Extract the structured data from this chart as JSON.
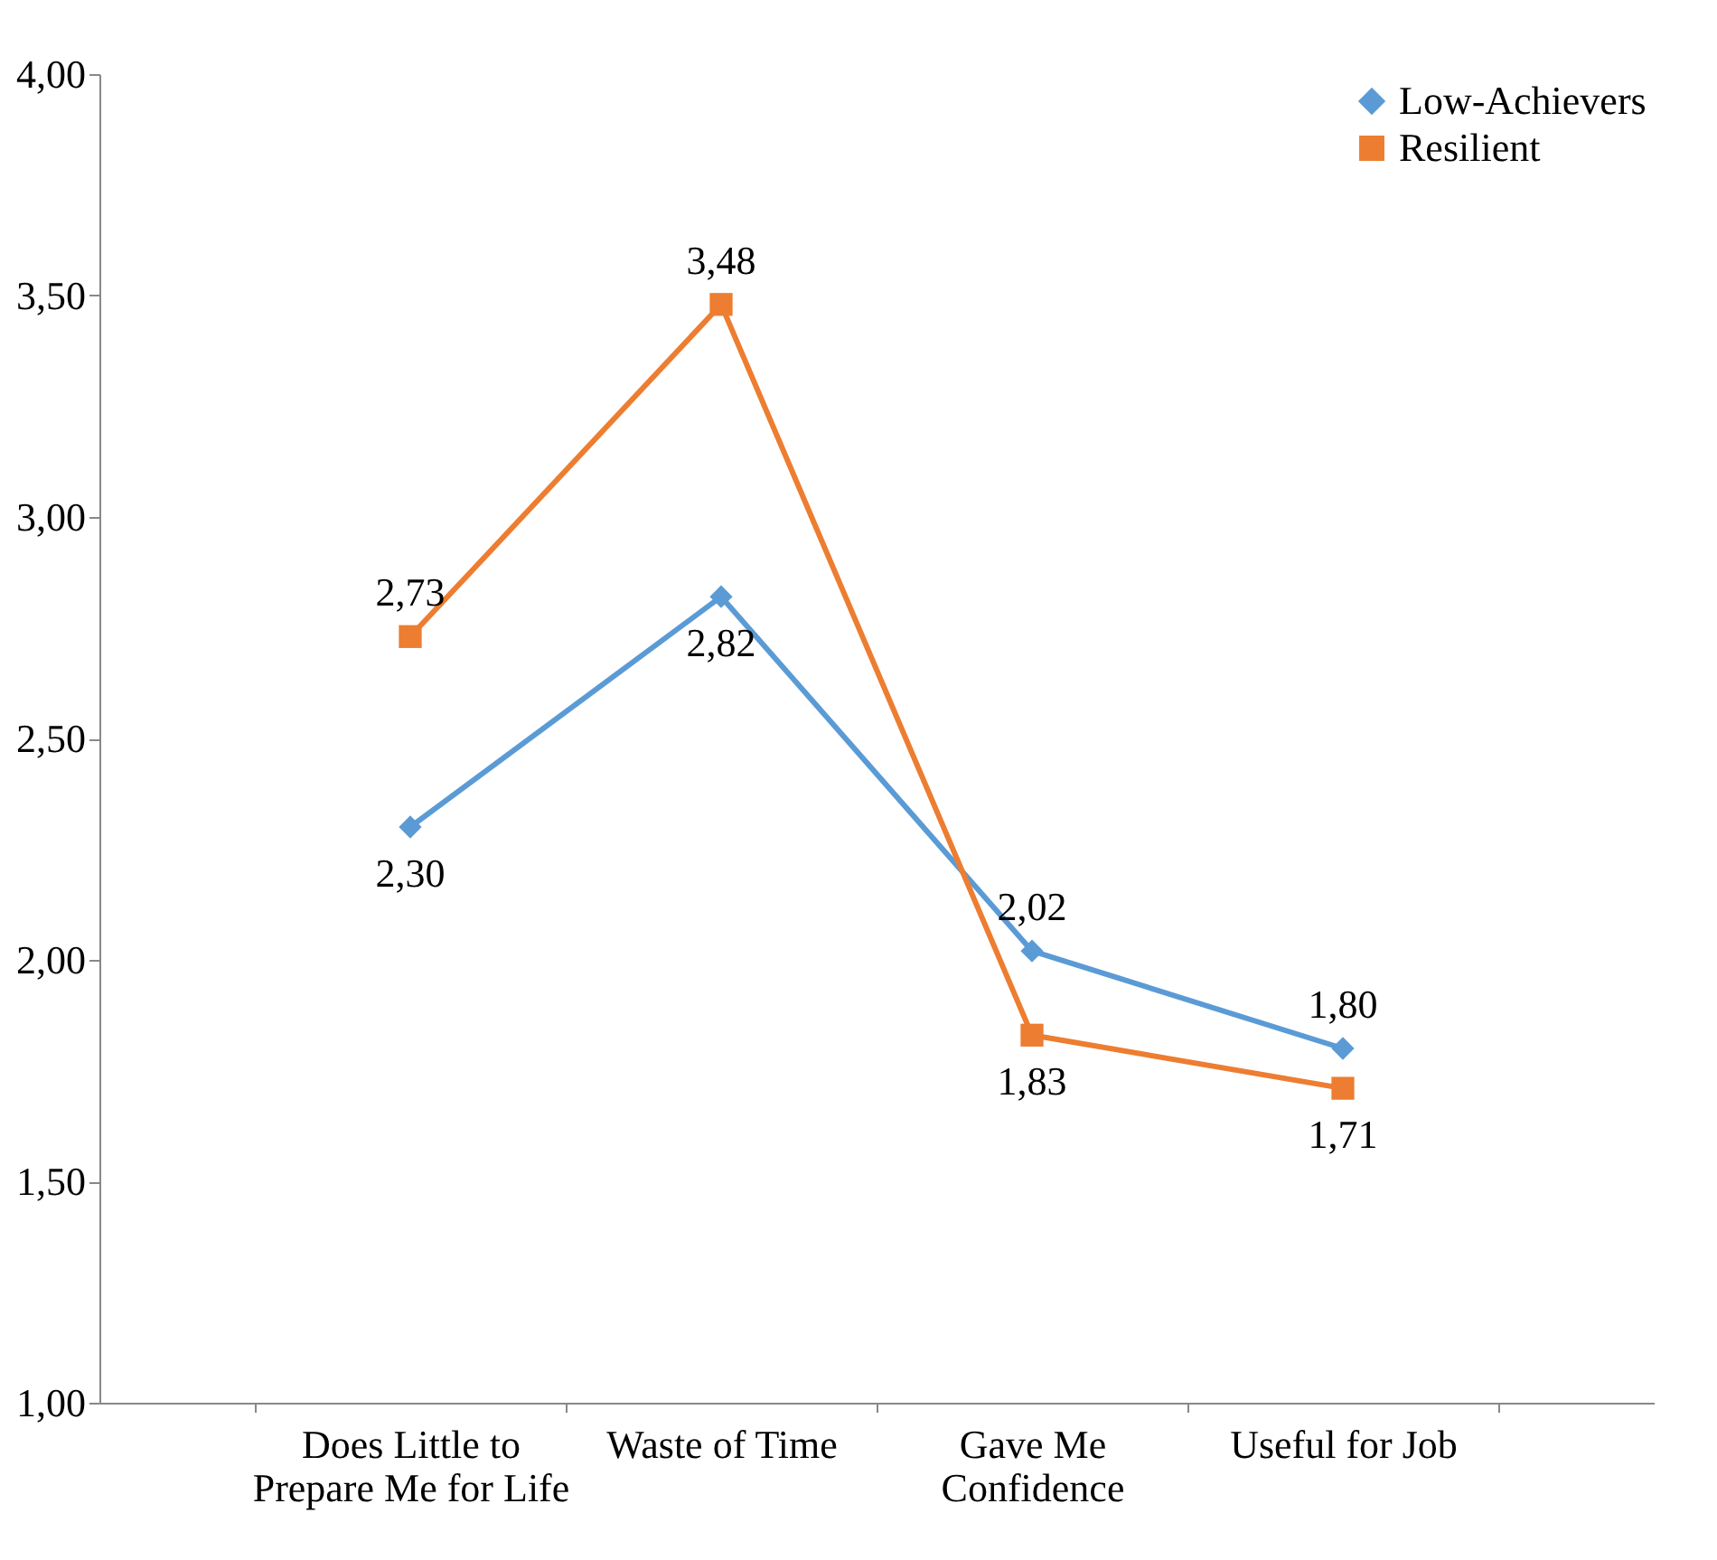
{
  "chart_data": {
    "type": "line",
    "categories": [
      "Does Little to Prepare Me for Life",
      "Waste of Time",
      "Gave Me Confidence",
      "Useful for Job"
    ],
    "series": [
      {
        "name": "Low-Achievers",
        "color": "#5b9bd5",
        "marker": "diamond",
        "values": [
          2.3,
          2.82,
          2.02,
          1.8
        ],
        "value_labels": [
          "2,30",
          "2,82",
          "2,02",
          "1,80"
        ]
      },
      {
        "name": "Resilient",
        "color": "#ed7d31",
        "marker": "square",
        "values": [
          2.73,
          3.48,
          1.83,
          1.71
        ],
        "value_labels": [
          "2,73",
          "3,48",
          "1,83",
          "1,71"
        ]
      }
    ],
    "ylim": [
      1,
      4
    ],
    "yticks": [
      {
        "value": 1,
        "label": "1,00"
      },
      {
        "value": 1.5,
        "label": "1,50"
      },
      {
        "value": 2,
        "label": "2,00"
      },
      {
        "value": 2.5,
        "label": "2,50"
      },
      {
        "value": 3,
        "label": "3,00"
      },
      {
        "value": 3.5,
        "label": "3,50"
      },
      {
        "value": 4,
        "label": "4,00"
      }
    ],
    "grid": false,
    "legend": "top right",
    "line_style": "solid"
  }
}
